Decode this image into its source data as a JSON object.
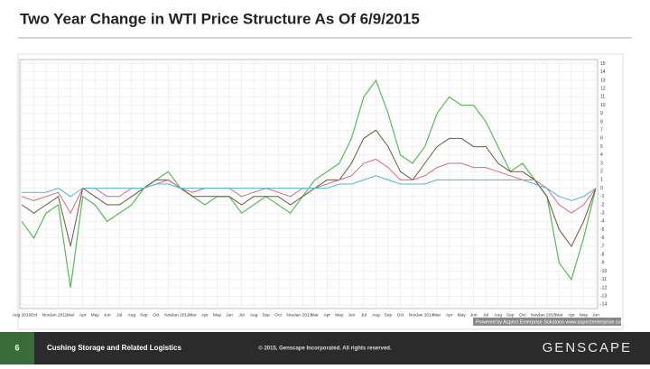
{
  "chart_data": {
    "type": "line",
    "title": "Two Year Change in WTI Price Structure As Of 6/9/2015",
    "credit": "Powered by Aspect Enterprise Solutions www.aspectenterprise.com",
    "categories": [
      "Aug 2010",
      "Oct",
      "Nov",
      "Jan 2011",
      "Mar",
      "Apr",
      "May",
      "Jun",
      "Jul",
      "Aug",
      "Sep",
      "Oct",
      "Nov",
      "Jan 2012",
      "Mar",
      "Apr",
      "May",
      "Jun",
      "Jul",
      "Aug",
      "Sep",
      "Oct",
      "Nov",
      "Jan 2013",
      "Mar",
      "Apr",
      "May",
      "Jun",
      "Jul",
      "Aug",
      "Sep",
      "Oct",
      "Nov",
      "Jan 2014",
      "Mar",
      "Apr",
      "May",
      "Jun",
      "Jul",
      "Aug",
      "Sep",
      "Oct",
      "Nov",
      "Jan 2015",
      "Mar",
      "Apr",
      "May",
      "Jun"
    ],
    "series": [
      {
        "color": "#5cb85c",
        "values": [
          -4,
          -6,
          -3,
          -2,
          -12,
          -1,
          -2,
          -4,
          -3,
          -2,
          0,
          1,
          2,
          0,
          -1,
          -2,
          -1,
          -1,
          -3,
          -2,
          -1,
          -2,
          -3,
          -1,
          1,
          2,
          3,
          6,
          11,
          13,
          9,
          4,
          3,
          5,
          9,
          11,
          10,
          10,
          8,
          5,
          2,
          3,
          1,
          -1,
          -9,
          -11,
          -6,
          0
        ]
      },
      {
        "color": "#6b5a3e",
        "values": [
          -2,
          -3,
          -2,
          -1,
          -7,
          0,
          -1,
          -2,
          -2,
          -1,
          0,
          1,
          1,
          0,
          -1,
          -1,
          -1,
          -1,
          -2,
          -1,
          -1,
          -1,
          -2,
          -1,
          0,
          1,
          1,
          3,
          6,
          7,
          5,
          2,
          1,
          3,
          5,
          6,
          6,
          5,
          5,
          3,
          2,
          2,
          1,
          -1,
          -5,
          -7,
          -4,
          0
        ]
      },
      {
        "color": "#d9687a",
        "values": [
          -1,
          -1.5,
          -1,
          -0.5,
          -3,
          0,
          0,
          -1,
          -1,
          0,
          0,
          0.5,
          1,
          0,
          -0.5,
          0,
          0,
          0,
          -1,
          -0.5,
          0,
          -0.5,
          -1,
          0,
          0,
          0.5,
          1,
          1.5,
          3,
          3.5,
          2.5,
          1,
          1,
          1.5,
          2.5,
          3,
          3,
          2.5,
          2.5,
          2,
          1.5,
          1,
          1,
          0,
          -2,
          -3,
          -2,
          0
        ]
      },
      {
        "color": "#4db8d8",
        "values": [
          -0.5,
          -0.5,
          -0.5,
          0,
          -1,
          0,
          0,
          0,
          0,
          0,
          0,
          0.5,
          0.5,
          0,
          0,
          0,
          0,
          0,
          0,
          0,
          0,
          0,
          0,
          0,
          0,
          0,
          0.5,
          0.5,
          1,
          1.5,
          1,
          0.5,
          0.5,
          0.5,
          1,
          1,
          1,
          1,
          1,
          1,
          1,
          1,
          0.5,
          0,
          -1,
          -1.5,
          -1,
          0
        ]
      }
    ],
    "ylim": [
      -14.5,
      15.5
    ],
    "yticks": [
      -14,
      -13,
      -12,
      -11,
      -10,
      -9,
      -8,
      -7,
      -6,
      -5,
      -4,
      -3,
      -2,
      -1,
      0,
      1,
      2,
      3,
      4,
      5,
      6,
      7,
      8,
      9,
      10,
      11,
      12,
      13,
      14,
      15
    ],
    "grid": true
  },
  "footer": {
    "page": "6",
    "section": "Cushing Storage and Related Logistics",
    "copyright": "© 2015, Genscape Incorporated. All rights reserved.",
    "logo": "GENSCAPE"
  }
}
